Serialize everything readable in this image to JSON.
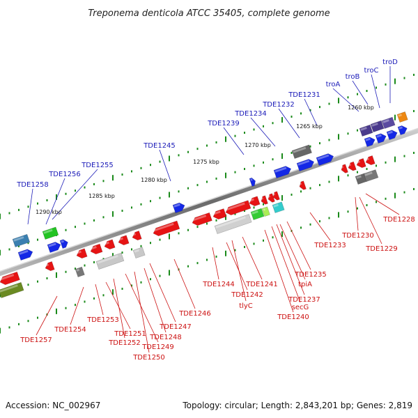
{
  "title": "Treponema denticola ATCC 35405, complete genome",
  "footer": {
    "accession": "Accession: NC_002967",
    "summary": "Topology: circular; Length: 2,843,201 bp; Genes: 2,819"
  },
  "colors": {
    "forward_label": "#1a1ab8",
    "reverse_label": "#cc1111",
    "forward_gene": "#1428e6",
    "reverse_gene": "#e61414",
    "backbone": "#888888",
    "tick": "#1a8a1a"
  },
  "kbp_labels": [
    "1260 kbp",
    "1265 kbp",
    "1270 kbp",
    "1275 kbp",
    "1280 kbp",
    "1285 kbp",
    "1290 kbp"
  ],
  "upper_labels": [
    "TDE1258",
    "TDE1256",
    "TDE1255",
    "TDE1245",
    "TDE1239",
    "TDE1234",
    "TDE1232",
    "TDE1231",
    "troA",
    "troB",
    "troC",
    "troD"
  ],
  "lower_labels": [
    "TDE1257",
    "TDE1254",
    "TDE1253",
    "TDE1251",
    "TDE1252",
    "TDE1249",
    "TDE1250",
    "TDE1248",
    "TDE1247",
    "TDE1246",
    "TDE1244",
    "TDE1242",
    "tlyC",
    "TDE1241",
    "TDE1240",
    "secG",
    "TDE1237",
    "tpiA",
    "TDE1235",
    "TDE1233",
    "TDE1230",
    "TDE1229",
    "TDE1228"
  ]
}
